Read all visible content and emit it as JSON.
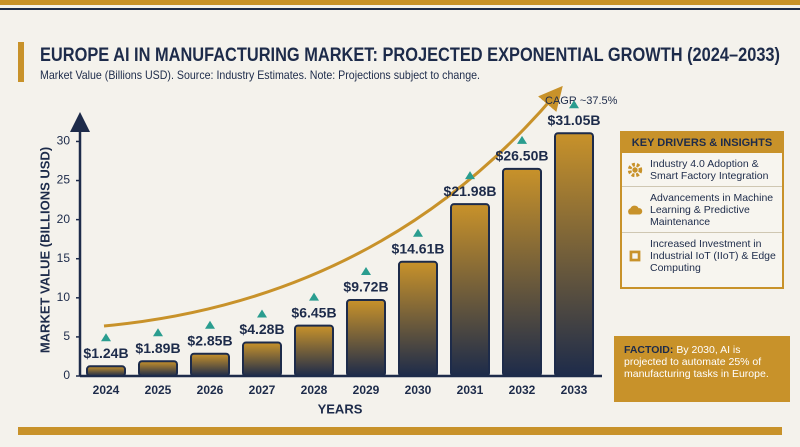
{
  "chart_data": {
    "type": "bar",
    "title": "EUROPE AI IN MANUFACTURING MARKET: PROJECTED EXPONENTIAL GROWTH (2024–2033)",
    "subtitle": "Market Value (Billions USD). Source: Industry Estimates. Note: Projections subject to change.",
    "x_label": "YEARS",
    "y_label": "MARKET VALUE (BILLIONS USD)",
    "annotation": "CAGR ~37.5%",
    "categories": [
      "2024",
      "2025",
      "2026",
      "2027",
      "2028",
      "2029",
      "2030",
      "2031",
      "2032",
      "2033"
    ],
    "values": [
      1.24,
      1.89,
      2.85,
      4.28,
      6.45,
      9.72,
      14.61,
      21.98,
      26.5,
      31.05
    ],
    "value_labels": [
      "$1.24B",
      "$1.89B",
      "$2.85B",
      "$4.28B",
      "$6.45B",
      "$9.72B",
      "$14.61B",
      "$21.98B",
      "$26.50B",
      "$31.05B"
    ],
    "color": "#c8922a",
    "ylim": [
      0,
      33
    ],
    "yticks": [
      0,
      5,
      10,
      15,
      20,
      25,
      30
    ]
  },
  "panel": {
    "title": "KEY DRIVERS & INSIGHTS",
    "items": [
      "Industry 4.0 Adoption & Smart Factory Integration",
      "Advancements in Machine Learning & Predictive Maintenance",
      "Increased Investment in Industrial IoT (IIoT) & Edge Computing"
    ]
  },
  "factoid": {
    "label": "FACTOID:",
    "text": "By 2030, AI is projected to automate 25% of manufacturing tasks in Europe."
  }
}
